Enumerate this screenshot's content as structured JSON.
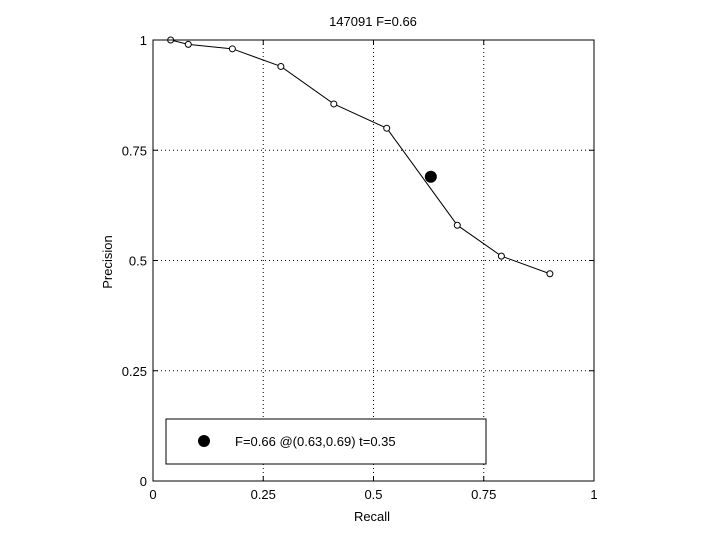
{
  "chart_data": {
    "type": "line",
    "title": "147091 F=0.66",
    "xlabel": "Recall",
    "ylabel": "Precision",
    "xlim": [
      0,
      1
    ],
    "ylim": [
      0,
      1
    ],
    "xticks": [
      0,
      0.25,
      0.5,
      0.75,
      1
    ],
    "xtick_labels": [
      "0",
      "0.25",
      "0.5",
      "0.75",
      "1"
    ],
    "yticks": [
      0,
      0.25,
      0.5,
      0.75,
      1
    ],
    "ytick_labels": [
      "0",
      "0.25",
      "0.5",
      "0.75",
      "1"
    ],
    "grid": true,
    "series": [
      {
        "x": [
          0.04,
          0.08,
          0.18,
          0.29,
          0.41,
          0.53,
          0.69,
          0.79,
          0.9
        ],
        "y": [
          1.0,
          0.99,
          0.98,
          0.94,
          0.855,
          0.8,
          0.58,
          0.51,
          0.47
        ],
        "color": "#000000",
        "marker": "open-circle"
      }
    ],
    "highlight_point": {
      "x": 0.63,
      "y": 0.69,
      "marker": "filled-circle",
      "color": "#000000"
    },
    "legend": {
      "placement": "bottom-left",
      "entries": [
        {
          "label": "F=0.66 @(0.63,0.69) t=0.35",
          "marker": "filled-circle"
        }
      ]
    }
  }
}
